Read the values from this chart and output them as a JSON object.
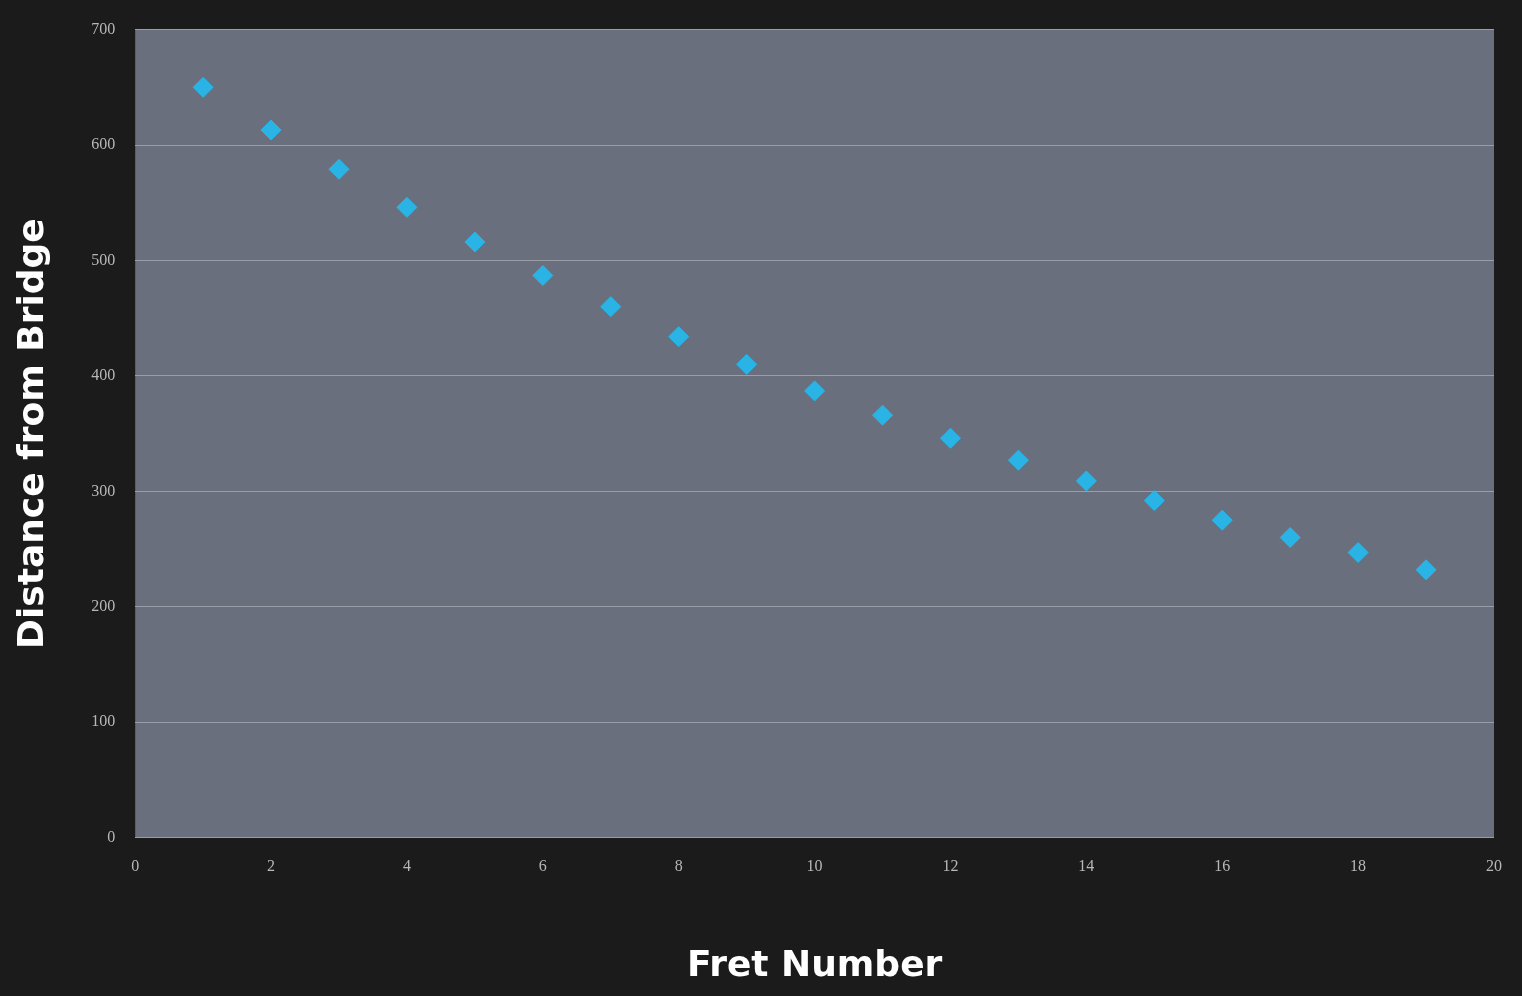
{
  "chart_data": {
    "type": "scatter",
    "xlabel": "Fret Number",
    "ylabel": "Distance from Bridge",
    "x": [
      1,
      2,
      3,
      4,
      5,
      6,
      7,
      8,
      9,
      10,
      11,
      12,
      13,
      14,
      15,
      16,
      17,
      18,
      19
    ],
    "series": [
      {
        "color": "#2ab4e6",
        "values": [
          650,
          613,
          579,
          546,
          516,
          487,
          460,
          434,
          410,
          387,
          366,
          346,
          327,
          309,
          292,
          275,
          260,
          247,
          232
        ]
      }
    ],
    "xlim": [
      0,
      20
    ],
    "xticks": [
      0,
      2,
      4,
      6,
      8,
      10,
      12,
      14,
      16,
      18,
      20
    ],
    "ylim": [
      0,
      700
    ],
    "yticks": [
      0,
      100,
      200,
      300,
      400,
      500,
      600,
      700
    ],
    "grid": "y",
    "legend": false,
    "marker": "diamond"
  }
}
